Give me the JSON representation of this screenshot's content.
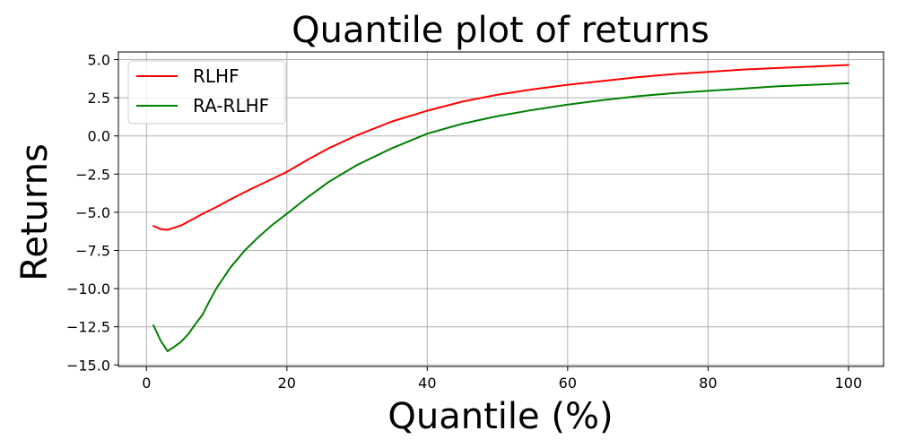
{
  "chart_data": {
    "type": "line",
    "title": "Quantile plot of returns",
    "xlabel": "Quantile (%)",
    "ylabel": "Returns",
    "xlim": [
      -4,
      105
    ],
    "ylim": [
      -15.1,
      5.5
    ],
    "xticks": [
      0,
      20,
      40,
      60,
      80,
      100
    ],
    "xtick_labels": [
      "0",
      "20",
      "40",
      "60",
      "80",
      "100"
    ],
    "yticks": [
      5.0,
      2.5,
      0.0,
      -2.5,
      -5.0,
      -7.5,
      -10.0,
      -12.5,
      -15.0
    ],
    "ytick_labels": [
      "5.0",
      "2.5",
      "0.0",
      "−2.5",
      "−5.0",
      "−7.5",
      "−10.0",
      "−12.5",
      "−15.0"
    ],
    "grid": true,
    "legend_position": "top-left",
    "series": [
      {
        "name": "RLHF",
        "color": "#ff0000",
        "x": [
          1,
          2,
          3,
          4,
          5,
          6,
          8,
          10,
          12,
          15,
          18,
          20,
          23,
          26,
          30,
          35,
          40,
          45,
          50,
          55,
          60,
          65,
          70,
          75,
          80,
          85,
          90,
          95,
          100
        ],
        "y": [
          -5.9,
          -6.1,
          -6.15,
          -6.0,
          -5.85,
          -5.6,
          -5.1,
          -4.65,
          -4.15,
          -3.45,
          -2.8,
          -2.35,
          -1.55,
          -0.8,
          0.05,
          0.95,
          1.65,
          2.25,
          2.7,
          3.05,
          3.35,
          3.6,
          3.85,
          4.05,
          4.2,
          4.35,
          4.45,
          4.55,
          4.65
        ]
      },
      {
        "name": "RA-RLHF",
        "color": "#008000",
        "x": [
          1,
          2,
          3,
          4,
          5,
          6,
          7,
          8,
          9,
          10,
          12,
          14,
          16,
          18,
          20,
          23,
          26,
          30,
          35,
          40,
          45,
          50,
          55,
          60,
          65,
          70,
          75,
          80,
          85,
          90,
          95,
          100
        ],
        "y": [
          -12.4,
          -13.4,
          -14.1,
          -13.8,
          -13.45,
          -12.95,
          -12.3,
          -11.7,
          -10.8,
          -9.95,
          -8.6,
          -7.5,
          -6.6,
          -5.8,
          -5.1,
          -4.0,
          -3.0,
          -1.9,
          -0.8,
          0.15,
          0.8,
          1.3,
          1.7,
          2.05,
          2.35,
          2.6,
          2.8,
          2.95,
          3.1,
          3.25,
          3.35,
          3.45
        ]
      }
    ]
  }
}
